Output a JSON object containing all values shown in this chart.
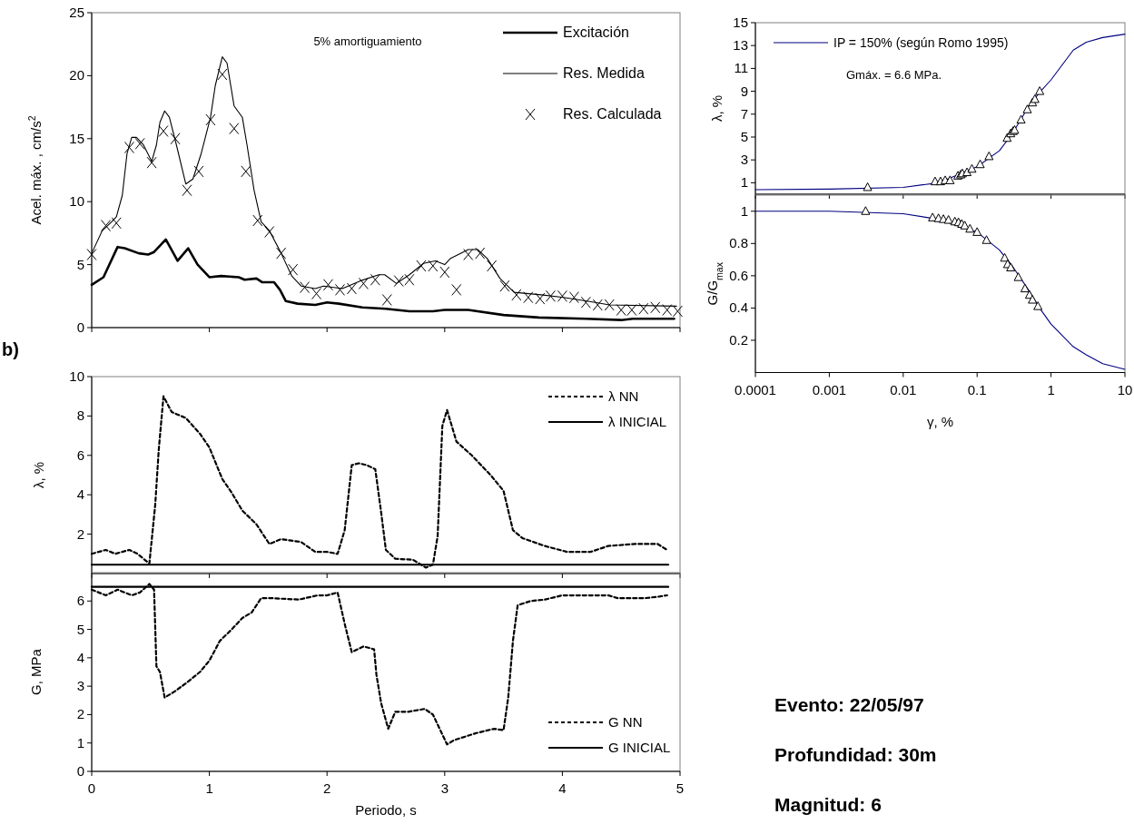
{
  "chart_data": [
    {
      "type": "line",
      "ylabel": "Acel. máx. , cm/s$^{2}$",
      "xlim": [
        0,
        5
      ],
      "xticks": [
        0,
        1,
        2,
        3,
        4,
        5
      ],
      "ylim": [
        0,
        25
      ],
      "yticks": [
        0,
        5,
        10,
        15,
        20,
        25
      ],
      "tick_labels": "y",
      "legend": "top right",
      "annotations": [
        "5% amortiguamiento"
      ],
      "series": [
        {
          "name": "Excitación",
          "color": "#000000",
          "type": "line",
          "x": [
            0,
            0.1,
            0.22,
            0.28,
            0.4,
            0.48,
            0.53,
            0.63,
            0.73,
            0.82,
            0.9,
            1.0,
            1.1,
            1.25,
            1.3,
            1.4,
            1.45,
            1.55,
            1.6,
            1.65,
            1.75,
            1.9,
            2.0,
            2.1,
            2.3,
            2.5,
            2.7,
            2.9,
            3.0,
            3.2,
            3.5,
            3.8,
            4.2,
            4.5,
            4.6,
            4.95
          ],
          "values": [
            3.4,
            4.0,
            6.4,
            6.3,
            5.9,
            5.8,
            6.0,
            7.0,
            5.3,
            6.3,
            5.0,
            4.0,
            4.1,
            4.0,
            3.8,
            3.9,
            3.6,
            3.6,
            3.0,
            2.1,
            1.9,
            1.8,
            2.0,
            1.9,
            1.6,
            1.5,
            1.3,
            1.3,
            1.4,
            1.4,
            1.0,
            0.8,
            0.7,
            0.6,
            0.7,
            0.7
          ]
        },
        {
          "name": "Res. Medida",
          "color": "#000000",
          "type": "line",
          "x": [
            0,
            0.09,
            0.17,
            0.21,
            0.26,
            0.3,
            0.34,
            0.38,
            0.44,
            0.51,
            0.55,
            0.58,
            0.62,
            0.66,
            0.72,
            0.8,
            0.86,
            0.93,
            1.01,
            1.05,
            1.11,
            1.15,
            1.21,
            1.28,
            1.32,
            1.38,
            1.44,
            1.51,
            1.61,
            1.7,
            1.78,
            1.9,
            1.97,
            2.13,
            2.28,
            2.44,
            2.49,
            2.59,
            2.7,
            2.82,
            2.92,
            3.0,
            3.05,
            3.2,
            3.28,
            3.36,
            3.47,
            3.59,
            3.82,
            4.01,
            4.28,
            4.4,
            4.97
          ],
          "values": [
            5.9,
            7.7,
            8.4,
            8.8,
            10.5,
            13.8,
            15.1,
            15.1,
            14.5,
            13.2,
            14.5,
            16.3,
            17.2,
            16.7,
            14.5,
            11.4,
            11.8,
            13.8,
            16.7,
            19.2,
            21.5,
            21.0,
            17.6,
            16.7,
            14.5,
            10.9,
            8.4,
            7.7,
            5.9,
            4.1,
            3.3,
            3.1,
            3.3,
            3.1,
            3.7,
            4.2,
            4.2,
            3.5,
            4.2,
            5.1,
            5.3,
            5.0,
            5.5,
            6.2,
            6.2,
            5.5,
            3.9,
            2.8,
            2.6,
            2.4,
            2.0,
            1.8,
            1.7
          ]
        },
        {
          "name": "Res. Calculada",
          "color": "#000000",
          "type": "scatter",
          "marker": "cross",
          "x": [
            0,
            0.12,
            0.21,
            0.32,
            0.41,
            0.51,
            0.61,
            0.71,
            0.81,
            0.91,
            1.01,
            1.11,
            1.21,
            1.31,
            1.41,
            1.51,
            1.61,
            1.71,
            1.81,
            1.91,
            2.01,
            2.11,
            2.21,
            2.31,
            2.41,
            2.51,
            2.61,
            2.7,
            2.8,
            2.9,
            3.0,
            3.1,
            3.2,
            3.3,
            3.4,
            3.51,
            3.61,
            3.71,
            3.81,
            3.9,
            4.0,
            4.1,
            4.2,
            4.3,
            4.4,
            4.5,
            4.59,
            4.69,
            4.79,
            4.89,
            4.98
          ],
          "values": [
            5.8,
            8.1,
            8.3,
            14.3,
            14.6,
            13.1,
            15.6,
            15.0,
            10.9,
            12.4,
            16.5,
            20.1,
            15.8,
            12.4,
            8.5,
            7.6,
            5.9,
            4.6,
            3.2,
            2.7,
            3.4,
            3.0,
            3.1,
            3.5,
            3.8,
            2.2,
            3.7,
            3.8,
            4.9,
            4.9,
            4.4,
            3.0,
            5.8,
            5.9,
            4.9,
            3.3,
            2.6,
            2.4,
            2.3,
            2.5,
            2.5,
            2.4,
            2.0,
            1.8,
            1.8,
            1.4,
            1.4,
            1.5,
            1.6,
            1.4,
            1.3
          ]
        }
      ]
    },
    {
      "type": "line",
      "ylabel": "λ, %",
      "xlim": [
        0,
        5
      ],
      "xticks": [
        0,
        1,
        2,
        3,
        4,
        5
      ],
      "ylim": [
        0,
        10
      ],
      "yticks": [
        2,
        4,
        6,
        8,
        10
      ],
      "tick_labels": "y",
      "legend": "top right",
      "annotations": [
        "b)"
      ],
      "series": [
        {
          "name": "λ NN",
          "color": "#000000",
          "type": "line",
          "line_style": "dashed",
          "x": [
            0,
            0.12,
            0.2,
            0.32,
            0.39,
            0.49,
            0.54,
            0.57,
            0.61,
            0.68,
            0.8,
            0.92,
            1.0,
            1.11,
            1.19,
            1.28,
            1.4,
            1.51,
            1.61,
            1.78,
            1.9,
            2.0,
            2.09,
            2.15,
            2.21,
            2.27,
            2.34,
            2.41,
            2.46,
            2.5,
            2.58,
            2.73,
            2.84,
            2.9,
            2.94,
            2.98,
            3.02,
            3.1,
            3.23,
            3.39,
            3.5,
            3.58,
            3.66,
            3.85,
            4.04,
            4.24,
            4.39,
            4.62,
            4.81,
            4.89
          ],
          "values": [
            1.0,
            1.2,
            1.0,
            1.2,
            1.0,
            0.5,
            3.5,
            6.3,
            9.0,
            8.2,
            7.9,
            7.1,
            6.4,
            4.8,
            4.1,
            3.2,
            2.5,
            1.5,
            1.75,
            1.6,
            1.1,
            1.1,
            1.0,
            2.2,
            5.5,
            5.6,
            5.5,
            5.3,
            3.1,
            1.2,
            0.75,
            0.7,
            0.3,
            0.45,
            1.9,
            7.5,
            8.3,
            6.7,
            6.0,
            5.0,
            4.2,
            2.2,
            1.8,
            1.4,
            1.1,
            1.1,
            1.4,
            1.5,
            1.5,
            1.2
          ]
        },
        {
          "name": "λ INICIAL",
          "color": "#000000",
          "type": "line",
          "line_style": "solid",
          "x": [
            0,
            4.9
          ],
          "values": [
            0.45,
            0.45
          ]
        }
      ]
    },
    {
      "type": "line",
      "xlabel": "Periodo, s",
      "ylabel": "G, MPa",
      "xlim": [
        0,
        5
      ],
      "xticks": [
        0,
        1,
        2,
        3,
        4,
        5
      ],
      "ylim": [
        0,
        7
      ],
      "yticks": [
        0,
        1,
        2,
        3,
        4,
        5,
        6
      ],
      "legend": "bottom right",
      "series": [
        {
          "name": "G NN",
          "color": "#000000",
          "type": "line",
          "line_style": "dashed",
          "x": [
            0,
            0.12,
            0.22,
            0.34,
            0.41,
            0.49,
            0.53,
            0.55,
            0.58,
            0.62,
            0.7,
            0.8,
            0.92,
            1.0,
            1.09,
            1.19,
            1.28,
            1.36,
            1.44,
            1.53,
            1.76,
            1.92,
            2.0,
            2.09,
            2.15,
            2.21,
            2.31,
            2.4,
            2.42,
            2.46,
            2.52,
            2.58,
            2.69,
            2.83,
            2.9,
            3.02,
            3.08,
            3.27,
            3.42,
            3.5,
            3.54,
            3.58,
            3.62,
            3.73,
            3.85,
            4.0,
            4.39,
            4.47,
            4.7,
            4.81,
            4.89
          ],
          "values": [
            6.4,
            6.2,
            6.4,
            6.2,
            6.3,
            6.6,
            6.4,
            3.7,
            3.5,
            2.6,
            2.8,
            3.1,
            3.5,
            3.9,
            4.6,
            5.0,
            5.4,
            5.6,
            6.1,
            6.1,
            6.05,
            6.2,
            6.2,
            6.3,
            5.2,
            4.2,
            4.4,
            4.3,
            3.4,
            2.4,
            1.5,
            2.1,
            2.1,
            2.2,
            2.0,
            0.95,
            1.1,
            1.35,
            1.5,
            1.45,
            2.6,
            4.6,
            5.85,
            6.0,
            6.05,
            6.2,
            6.2,
            6.1,
            6.1,
            6.15,
            6.2
          ]
        },
        {
          "name": "G INICIAL",
          "color": "#000000",
          "type": "line",
          "line_style": "solid",
          "x": [
            0,
            4.9
          ],
          "values": [
            6.5,
            6.5
          ]
        }
      ]
    },
    {
      "type": "line",
      "ylabel": "λ, %",
      "log": "x",
      "xlim": [
        0.0001,
        10
      ],
      "xticks": [
        0.0001,
        0.001,
        0.01,
        0.1,
        1,
        10
      ],
      "ylim": [
        0,
        15
      ],
      "yticks": [
        1,
        3,
        5,
        7,
        9,
        11,
        13,
        15
      ],
      "tick_labels": "y",
      "legend": "top left",
      "annotations": [
        "Gmáx. = 6.6 MPa."
      ],
      "series": [
        {
          "name": "IP = 150% (según Romo 1995)",
          "color": "#000080",
          "type": "line",
          "x": [
            0.0001,
            0.001,
            0.01,
            0.03,
            0.1,
            0.2,
            0.3,
            0.5,
            0.7,
            1,
            2,
            3,
            5,
            10
          ],
          "values": [
            0.4,
            0.45,
            0.6,
            1.0,
            2.4,
            3.8,
            5.3,
            7.7,
            8.9,
            10.0,
            12.6,
            13.3,
            13.7,
            14.0
          ]
        },
        {
          "color": "#000000",
          "type": "scatter",
          "marker": "triangle",
          "x": [
            0.0033,
            0.027,
            0.032,
            0.037,
            0.043,
            0.055,
            0.06,
            0.063,
            0.073,
            0.085,
            0.11,
            0.145,
            0.255,
            0.285,
            0.307,
            0.322,
            0.393,
            0.478,
            0.562,
            0.605,
            0.703
          ],
          "values": [
            0.6,
            1.1,
            1.1,
            1.2,
            1.2,
            1.6,
            1.7,
            1.8,
            1.9,
            2.2,
            2.6,
            3.3,
            4.9,
            5.3,
            5.5,
            5.6,
            6.5,
            7.4,
            8.0,
            8.3,
            9.0
          ]
        }
      ]
    },
    {
      "type": "line",
      "xlabel": "γ, %",
      "ylabel": "G/G$_{max}$",
      "log": "x",
      "xlim": [
        0.0001,
        10
      ],
      "xticks": [
        0.0001,
        0.001,
        0.01,
        0.1,
        1,
        10
      ],
      "ylim": [
        0,
        1.1
      ],
      "yticks": [
        0.2,
        0.4,
        0.6,
        0.8,
        1
      ],
      "series": [
        {
          "color": "#000080",
          "type": "line",
          "x": [
            0.0001,
            0.001,
            0.01,
            0.03,
            0.1,
            0.2,
            0.3,
            0.5,
            0.7,
            1,
            2,
            3,
            5,
            10
          ],
          "values": [
            1.0,
            1.0,
            0.985,
            0.95,
            0.87,
            0.76,
            0.66,
            0.51,
            0.4,
            0.3,
            0.16,
            0.11,
            0.055,
            0.02
          ]
        },
        {
          "color": "#000000",
          "type": "scatter",
          "marker": "triangle",
          "x": [
            0.0031,
            0.025,
            0.03,
            0.035,
            0.041,
            0.05,
            0.056,
            0.062,
            0.068,
            0.08,
            0.1,
            0.134,
            0.236,
            0.259,
            0.285,
            0.361,
            0.444,
            0.511,
            0.561,
            0.665
          ],
          "values": [
            1.0,
            0.96,
            0.955,
            0.95,
            0.945,
            0.935,
            0.93,
            0.92,
            0.91,
            0.89,
            0.87,
            0.82,
            0.71,
            0.67,
            0.65,
            0.59,
            0.52,
            0.48,
            0.45,
            0.41
          ]
        }
      ]
    },
    {
      "type": "other",
      "annotations": [
        "Evento: 22/05/97",
        "Profundidad: 30m",
        "Magnitud: 6"
      ]
    }
  ]
}
